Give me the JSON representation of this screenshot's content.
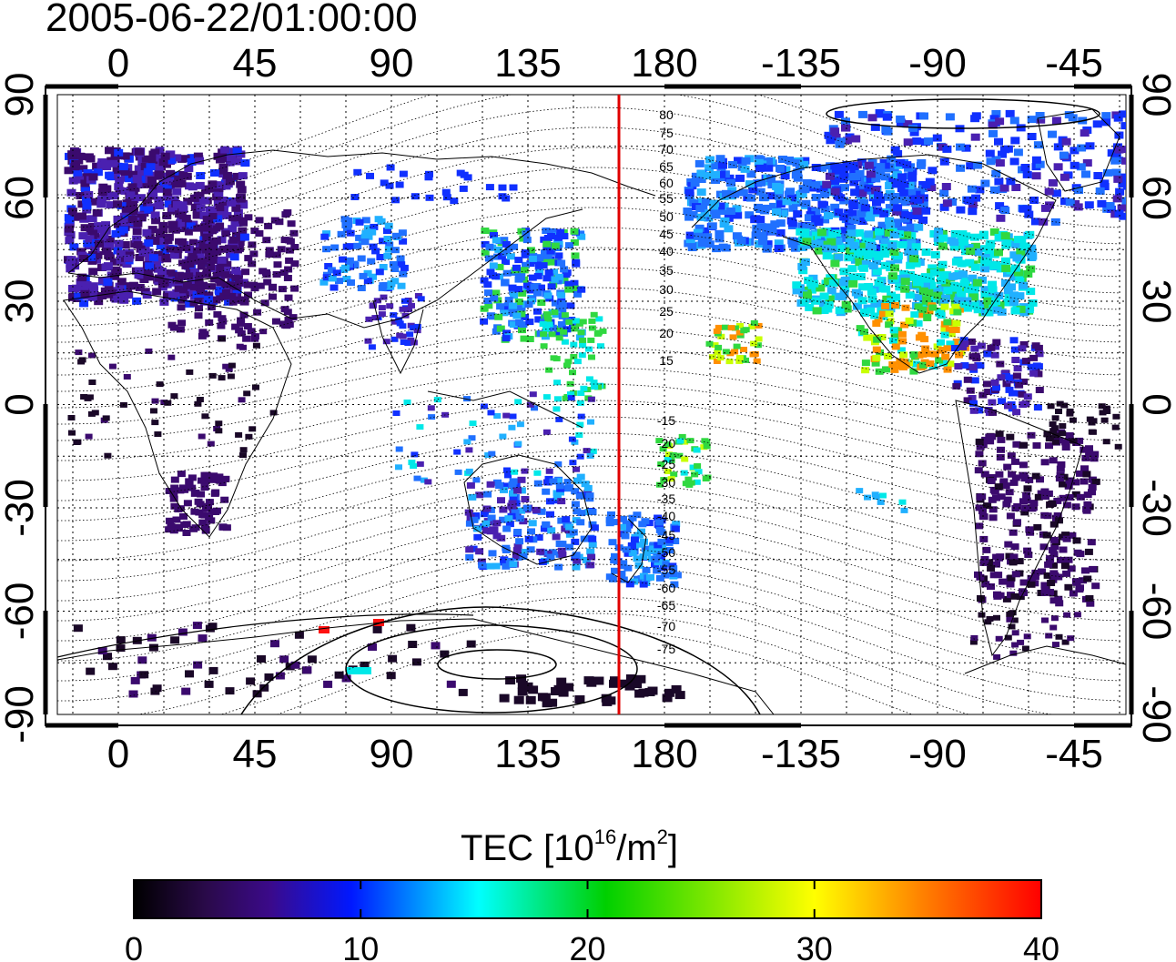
{
  "title": "2005-06-22/01:00:00",
  "map": {
    "lon_ticks_top": [
      "0",
      "45",
      "90",
      "135",
      "180",
      "-135",
      "-90",
      "-45"
    ],
    "lon_ticks_bottom": [
      "0",
      "45",
      "90",
      "135",
      "180",
      "-135",
      "-90",
      "-45"
    ],
    "lat_ticks_left": [
      "90",
      "60",
      "30",
      "0",
      "-30",
      "-60",
      "-90"
    ],
    "lat_ticks_right": [
      "90",
      "60",
      "30",
      "0",
      "-30",
      "-60",
      "-90"
    ],
    "contour_labels_north": [
      "80",
      "75",
      "70",
      "65",
      "60",
      "55",
      "50",
      "45",
      "40",
      "35",
      "30",
      "25",
      "20",
      "15"
    ],
    "contour_labels_south": [
      "-15",
      "-20",
      "-25",
      "-30",
      "-35",
      "-40",
      "-45",
      "-50",
      "-55",
      "-60",
      "-65",
      "-70",
      "-75"
    ],
    "terminator_meridian_lon": 165,
    "terminator_color": "#e00000"
  },
  "colorbar": {
    "label_main": "TEC  [10",
    "label_exp1": "16",
    "label_mid": "/m",
    "label_exp2": "2",
    "label_end": "]",
    "ticks": [
      "0",
      "10",
      "20",
      "30",
      "40"
    ],
    "range": [
      0,
      40
    ],
    "colors": [
      "#000000",
      "#3b0a6e",
      "#0018ff",
      "#00ffff",
      "#00d000",
      "#ffff00",
      "#ff8000",
      "#ff0000"
    ]
  }
}
